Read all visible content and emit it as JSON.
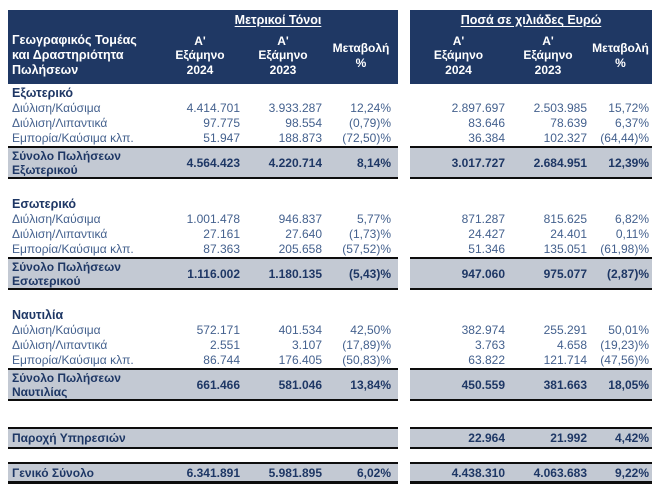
{
  "colors": {
    "header_bg": "#1F3864",
    "header_text": "#FFFFFF",
    "body_text": "#44618E",
    "bold_text": "#1E3765",
    "total_bg": "#C3C9D3",
    "border_dark": "#0D0D0D",
    "page_bg": "#FFFFFF"
  },
  "left_table": {
    "title": "Μετρικοί Τόνοι"
  },
  "right_table": {
    "title": "Ποσά σε χιλιάδες Ευρώ"
  },
  "row_header": "Γεωγραφικός Τομέας και Δραστηριότητα Πωλήσεων",
  "columns": {
    "h2024": "Α' Εξάμηνο 2024",
    "h2023": "Α' Εξάμηνο 2023",
    "change": "Μεταβολή %"
  },
  "sections": [
    {
      "name": "Εξωτερικό",
      "rows": [
        {
          "label": "Διύλιση/Καύσιμα",
          "tons": [
            "4.414.701",
            "3.933.287",
            "12,24%"
          ],
          "euro": [
            "2.897.697",
            "2.503.985",
            "15,72%"
          ]
        },
        {
          "label": "Διύλιση/Λιπαντικά",
          "tons": [
            "97.775",
            "98.554",
            "(0,79)%"
          ],
          "euro": [
            "83.646",
            "78.639",
            "6,37%"
          ]
        },
        {
          "label": "Εμπορία/Καύσιμα κλπ.",
          "tons": [
            "51.947",
            "188.873",
            "(72,50)%"
          ],
          "euro": [
            "36.384",
            "102.327",
            "(64,44)%"
          ]
        }
      ],
      "total": {
        "label": "Σύνολο Πωλήσεων Εξωτερικού",
        "tons": [
          "4.564.423",
          "4.220.714",
          "8,14%"
        ],
        "euro": [
          "3.017.727",
          "2.684.951",
          "12,39%"
        ]
      }
    },
    {
      "name": "Εσωτερικό",
      "rows": [
        {
          "label": "Διύλιση/Καύσιμα",
          "tons": [
            "1.001.478",
            "946.837",
            "5,77%"
          ],
          "euro": [
            "871.287",
            "815.625",
            "6,82%"
          ]
        },
        {
          "label": "Διύλιση/Λιπαντικά",
          "tons": [
            "27.161",
            "27.640",
            "(1,73)%"
          ],
          "euro": [
            "24.427",
            "24.401",
            "0,11%"
          ]
        },
        {
          "label": "Εμπορία/Καύσιμα κλπ.",
          "tons": [
            "87.363",
            "205.658",
            "(57,52)%"
          ],
          "euro": [
            "51.346",
            "135.051",
            "(61,98)%"
          ]
        }
      ],
      "total": {
        "label": "Σύνολο Πωλήσεων Εσωτερικού",
        "tons": [
          "1.116.002",
          "1.180.135",
          "(5,43)%"
        ],
        "euro": [
          "947.060",
          "975.077",
          "(2,87)%"
        ]
      }
    },
    {
      "name": "Ναυτιλία",
      "rows": [
        {
          "label": "Διύλιση/Καύσιμα",
          "tons": [
            "572.171",
            "401.534",
            "42,50%"
          ],
          "euro": [
            "382.974",
            "255.291",
            "50,01%"
          ]
        },
        {
          "label": "Διύλιση/Λιπαντικά",
          "tons": [
            "2.551",
            "3.107",
            "(17,89)%"
          ],
          "euro": [
            "3.763",
            "4.658",
            "(19,23)%"
          ]
        },
        {
          "label": "Εμπορία/Καύσιμα κλπ.",
          "tons": [
            "86.744",
            "176.405",
            "(50,83)%"
          ],
          "euro": [
            "63.822",
            "121.714",
            "(47,56)%"
          ]
        }
      ],
      "total": {
        "label": "Σύνολο Πωλήσεων Ναυτιλίας",
        "tons": [
          "661.466",
          "581.046",
          "13,84%"
        ],
        "euro": [
          "450.559",
          "381.663",
          "18,05%"
        ]
      }
    }
  ],
  "services": {
    "label": "Παροχή Υπηρεσιών",
    "euro": [
      "22.964",
      "21.992",
      "4,42%"
    ]
  },
  "grand_total": {
    "label": "Γενικό Σύνολο",
    "tons": [
      "6.341.891",
      "5.981.895",
      "6,02%"
    ],
    "euro": [
      "4.438.310",
      "4.063.683",
      "9,22%"
    ]
  }
}
